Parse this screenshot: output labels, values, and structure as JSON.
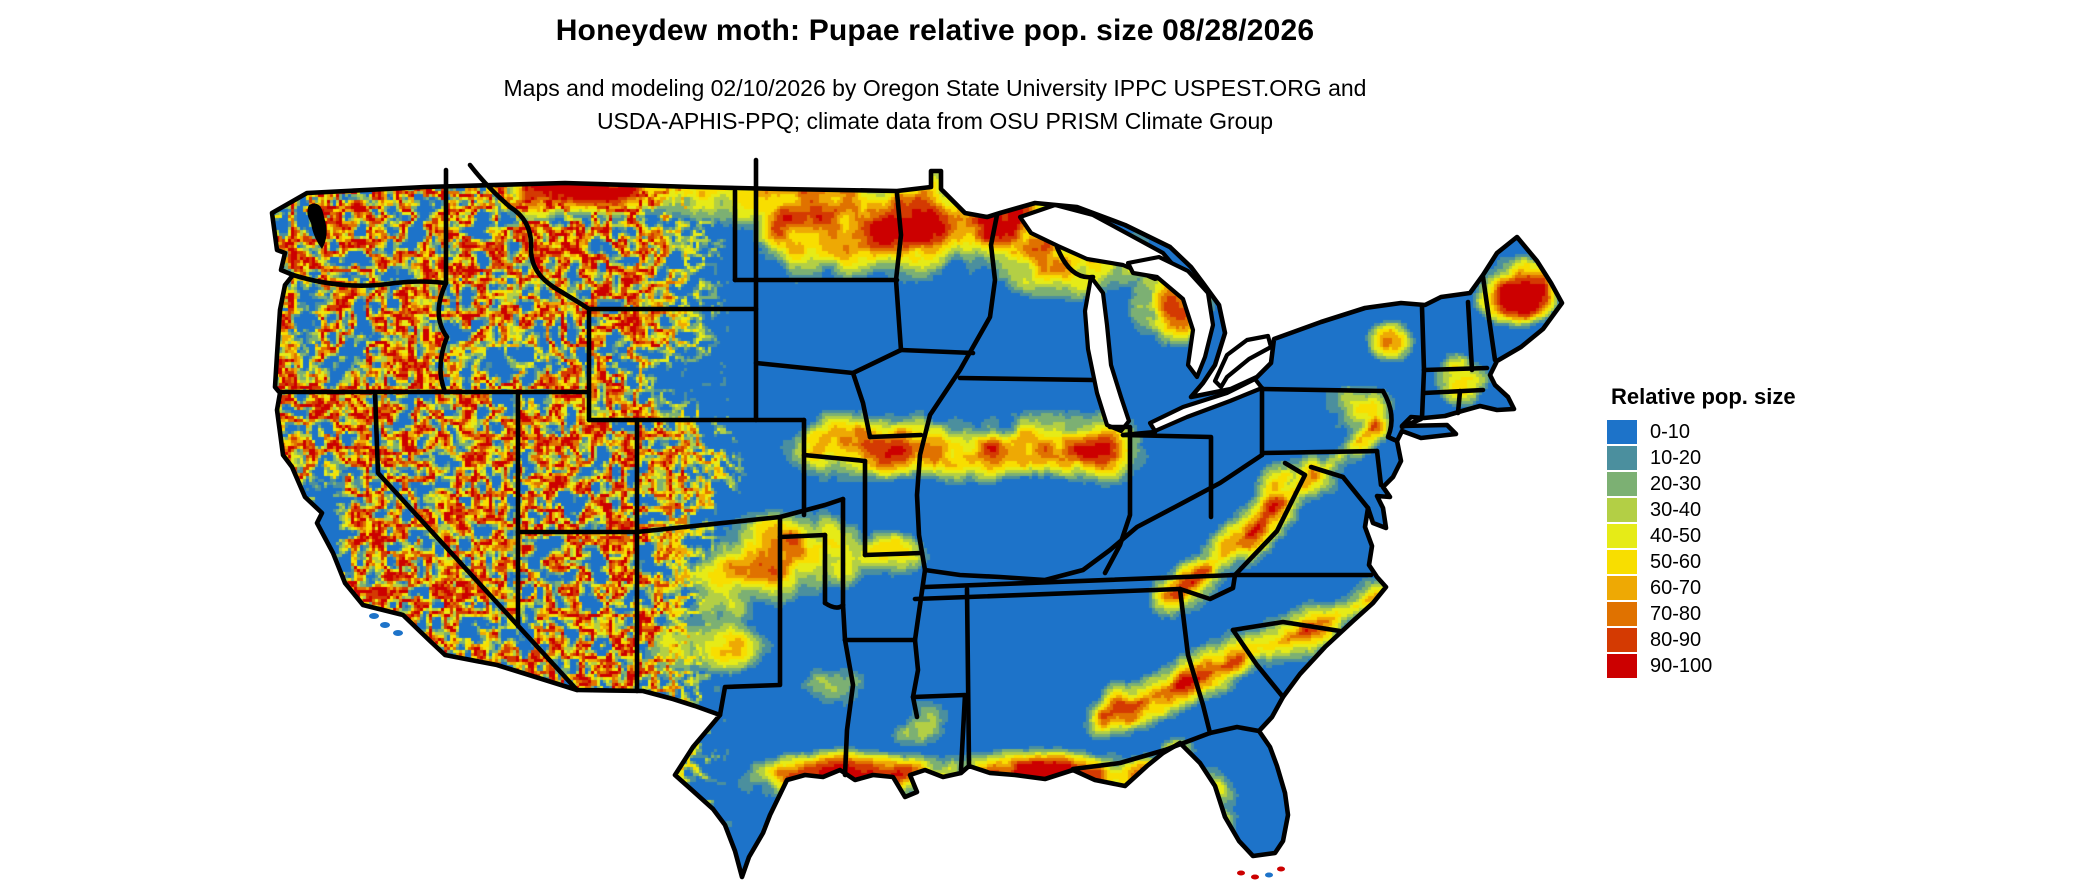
{
  "header": {
    "title": "Honeydew moth: Pupae relative pop. size 08/28/2026",
    "subtitle_line1": "Maps and modeling 02/10/2026 by Oregon State University IPPC USPEST.ORG and",
    "subtitle_line2": "USDA-APHIS-PPQ; climate data from OSU PRISM Climate Group"
  },
  "map": {
    "region": "Continental United States",
    "type": "raster-risk-map",
    "base_color": "#1D73C9",
    "border_color": "#000000",
    "water_color": "#FFFFFF"
  },
  "legend": {
    "title": "Relative pop. size",
    "items": [
      {
        "label": "0-10",
        "color": "#1D73C9"
      },
      {
        "label": "10-20",
        "color": "#4B8F9E"
      },
      {
        "label": "20-30",
        "color": "#7CB073"
      },
      {
        "label": "30-40",
        "color": "#B3CF45"
      },
      {
        "label": "40-50",
        "color": "#E6EB17"
      },
      {
        "label": "50-60",
        "color": "#F8DE00"
      },
      {
        "label": "60-70",
        "color": "#EEA904"
      },
      {
        "label": "70-80",
        "color": "#E07200"
      },
      {
        "label": "80-90",
        "color": "#D43A02"
      },
      {
        "label": "90-100",
        "color": "#CC0000"
      }
    ]
  }
}
